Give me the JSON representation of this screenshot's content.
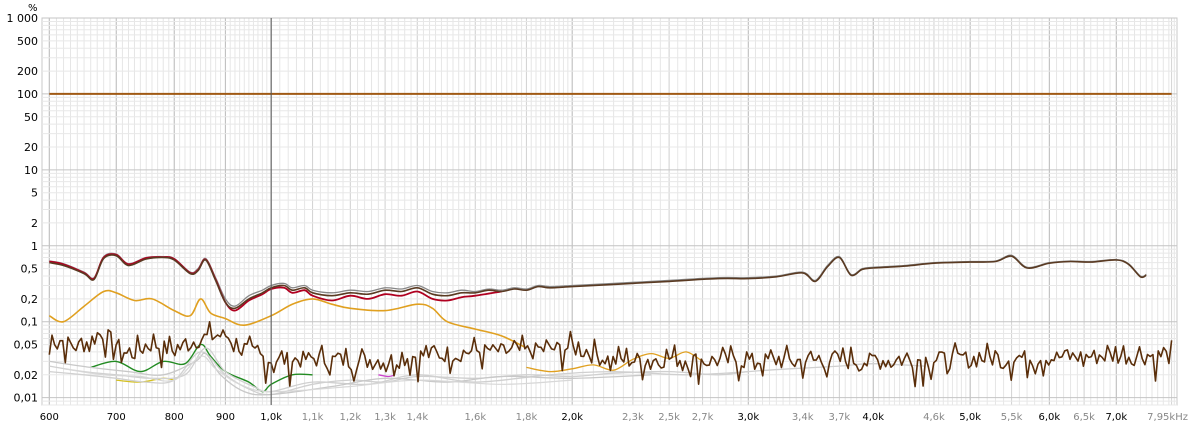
{
  "chart_data": {
    "type": "line",
    "y_unit": "%",
    "x_unit": "kHz",
    "y_scale": "log",
    "x_scale": "log",
    "xlim": [
      590,
      8050
    ],
    "ylim": [
      0.008,
      1000
    ],
    "grid": true,
    "y_ticks": [
      {
        "v": 1000,
        "label": "1 000"
      },
      {
        "v": 500,
        "label": "500"
      },
      {
        "v": 200,
        "label": "200"
      },
      {
        "v": 100,
        "label": "100"
      },
      {
        "v": 50,
        "label": "50"
      },
      {
        "v": 20,
        "label": "20"
      },
      {
        "v": 10,
        "label": "10"
      },
      {
        "v": 5,
        "label": "5"
      },
      {
        "v": 2,
        "label": "2"
      },
      {
        "v": 1,
        "label": "1"
      },
      {
        "v": 0.5,
        "label": "0,5"
      },
      {
        "v": 0.2,
        "label": "0,2"
      },
      {
        "v": 0.1,
        "label": "0,1"
      },
      {
        "v": 0.05,
        "label": "0,05"
      },
      {
        "v": 0.02,
        "label": "0,02"
      },
      {
        "v": 0.01,
        "label": "0,01"
      }
    ],
    "x_ticks": [
      {
        "v": 600,
        "label": "600",
        "major": true
      },
      {
        "v": 700,
        "label": "700",
        "major": true
      },
      {
        "v": 800,
        "label": "800",
        "major": true
      },
      {
        "v": 900,
        "label": "900",
        "major": true
      },
      {
        "v": 1000,
        "label": "1,0k",
        "major": true
      },
      {
        "v": 1100,
        "label": "1,1k",
        "major": false
      },
      {
        "v": 1200,
        "label": "1,2k",
        "major": false
      },
      {
        "v": 1300,
        "label": "1,3k",
        "major": false
      },
      {
        "v": 1400,
        "label": "1,4k",
        "major": false
      },
      {
        "v": 1600,
        "label": "1,6k",
        "major": false
      },
      {
        "v": 1800,
        "label": "1,8k",
        "major": false
      },
      {
        "v": 2000,
        "label": "2,0k",
        "major": true
      },
      {
        "v": 2300,
        "label": "2,3k",
        "major": false
      },
      {
        "v": 2500,
        "label": "2,5k",
        "major": false
      },
      {
        "v": 2700,
        "label": "2,7k",
        "major": false
      },
      {
        "v": 3000,
        "label": "3,0k",
        "major": true
      },
      {
        "v": 3400,
        "label": "3,4k",
        "major": false
      },
      {
        "v": 3700,
        "label": "3,7k",
        "major": false
      },
      {
        "v": 4000,
        "label": "4,0k",
        "major": true
      },
      {
        "v": 4600,
        "label": "4,6k",
        "major": false
      },
      {
        "v": 5000,
        "label": "5,0k",
        "major": true
      },
      {
        "v": 5500,
        "label": "5,5k",
        "major": false
      },
      {
        "v": 6000,
        "label": "6,0k",
        "major": true
      },
      {
        "v": 6500,
        "label": "6,5k",
        "major": false
      },
      {
        "v": 7000,
        "label": "7,0k",
        "major": true
      },
      {
        "v": 7950,
        "label": "7,95kHz",
        "major": false
      }
    ],
    "cursor_x": 1000,
    "series": [
      {
        "color": "#a05a14",
        "width": 2,
        "smooth": false,
        "x": [
          600,
          7950
        ],
        "y": [
          100,
          100
        ]
      },
      {
        "color": "#888888",
        "width": 1.3,
        "smooth": true,
        "x": [
          600,
          620,
          650,
          665,
          680,
          700,
          720,
          750,
          780,
          800,
          830,
          845,
          860,
          880,
          900,
          920,
          950,
          980,
          1000,
          1030,
          1050,
          1080,
          1100,
          1150,
          1200,
          1250,
          1300,
          1350,
          1400,
          1450,
          1500,
          1550,
          1600,
          1650,
          1700,
          1750,
          1800,
          1850,
          1900,
          2000,
          2200,
          2500,
          2800,
          3000,
          3200,
          3400,
          3500,
          3600,
          3700,
          3800,
          3900,
          4000,
          4300,
          4600,
          5000,
          5300,
          5500,
          5700,
          6000,
          6300,
          6600,
          7000,
          7200,
          7400,
          7500
        ],
        "y": [
          0.63,
          0.58,
          0.45,
          0.38,
          0.72,
          0.78,
          0.58,
          0.7,
          0.72,
          0.68,
          0.45,
          0.5,
          0.68,
          0.38,
          0.2,
          0.16,
          0.22,
          0.26,
          0.3,
          0.32,
          0.28,
          0.3,
          0.26,
          0.24,
          0.26,
          0.25,
          0.28,
          0.27,
          0.3,
          0.25,
          0.24,
          0.26,
          0.25,
          0.27,
          0.26,
          0.28,
          0.27,
          0.3,
          0.29,
          0.3,
          0.32,
          0.35,
          0.38,
          0.38,
          0.4,
          0.45,
          0.35,
          0.55,
          0.72,
          0.42,
          0.5,
          0.52,
          0.55,
          0.6,
          0.62,
          0.63,
          0.75,
          0.52,
          0.6,
          0.63,
          0.62,
          0.66,
          0.58,
          0.4,
          0.42
        ]
      },
      {
        "color": "#b00020",
        "width": 1.8,
        "smooth": true,
        "x": [
          600,
          620,
          650,
          665,
          680,
          700,
          720,
          750,
          780,
          800,
          830,
          845,
          860,
          880,
          900,
          920,
          950,
          980,
          1000,
          1030,
          1050,
          1080,
          1100,
          1150,
          1200,
          1250,
          1300,
          1350,
          1400,
          1450,
          1500,
          1550,
          1600,
          1700
        ],
        "y": [
          0.62,
          0.57,
          0.44,
          0.37,
          0.7,
          0.76,
          0.57,
          0.69,
          0.71,
          0.67,
          0.44,
          0.48,
          0.66,
          0.36,
          0.18,
          0.14,
          0.19,
          0.23,
          0.27,
          0.28,
          0.24,
          0.26,
          0.22,
          0.19,
          0.22,
          0.2,
          0.23,
          0.22,
          0.25,
          0.2,
          0.19,
          0.21,
          0.22,
          0.25
        ]
      },
      {
        "color": "#5a3a22",
        "width": 1.6,
        "smooth": true,
        "x": [
          600,
          620,
          650,
          665,
          680,
          700,
          720,
          750,
          780,
          800,
          830,
          845,
          860,
          880,
          900,
          920,
          950,
          980,
          1000,
          1030,
          1050,
          1080,
          1100,
          1150,
          1200,
          1250,
          1300,
          1350,
          1400,
          1450,
          1500,
          1550,
          1600,
          1650,
          1700,
          1750,
          1800,
          1850,
          1900,
          2000,
          2200,
          2500,
          2800,
          3000,
          3200,
          3400,
          3500,
          3600,
          3700,
          3800,
          3900,
          4000,
          4300,
          4600,
          5000,
          5300,
          5500,
          5700,
          6000,
          6300,
          6600,
          7000,
          7200,
          7400,
          7500
        ],
        "y": [
          0.6,
          0.55,
          0.43,
          0.36,
          0.68,
          0.74,
          0.55,
          0.67,
          0.7,
          0.65,
          0.43,
          0.47,
          0.65,
          0.35,
          0.18,
          0.15,
          0.2,
          0.24,
          0.28,
          0.3,
          0.26,
          0.28,
          0.24,
          0.22,
          0.24,
          0.23,
          0.26,
          0.25,
          0.28,
          0.23,
          0.22,
          0.24,
          0.24,
          0.26,
          0.25,
          0.27,
          0.26,
          0.29,
          0.28,
          0.29,
          0.31,
          0.34,
          0.37,
          0.37,
          0.39,
          0.44,
          0.34,
          0.53,
          0.7,
          0.41,
          0.49,
          0.51,
          0.54,
          0.59,
          0.61,
          0.62,
          0.73,
          0.51,
          0.59,
          0.62,
          0.61,
          0.65,
          0.57,
          0.39,
          0.41
        ]
      },
      {
        "color": "#e0a020",
        "width": 1.6,
        "smooth": true,
        "x": [
          600,
          620,
          650,
          680,
          700,
          730,
          760,
          800,
          830,
          850,
          870,
          900,
          940,
          1000,
          1050,
          1100,
          1150,
          1200,
          1300,
          1400,
          1450,
          1500,
          1600,
          1700,
          1800
        ],
        "y": [
          0.12,
          0.1,
          0.16,
          0.25,
          0.24,
          0.19,
          0.2,
          0.14,
          0.12,
          0.2,
          0.13,
          0.11,
          0.09,
          0.12,
          0.17,
          0.2,
          0.17,
          0.15,
          0.14,
          0.17,
          0.15,
          0.1,
          0.08,
          0.065,
          0.045
        ]
      },
      {
        "color": "#e0a020",
        "width": 1.3,
        "smooth": true,
        "x": [
          1800,
          1900,
          2000,
          2100,
          2200,
          2300,
          2400,
          2500,
          2600,
          2700
        ],
        "y": [
          0.025,
          0.022,
          0.024,
          0.027,
          0.023,
          0.032,
          0.038,
          0.033,
          0.04,
          0.03
        ]
      },
      {
        "color": "#228b22",
        "width": 1.4,
        "smooth": true,
        "x": [
          660,
          700,
          740,
          780,
          820,
          850,
          870,
          900,
          950,
          980,
          1000,
          1050,
          1100
        ],
        "y": [
          0.025,
          0.03,
          0.022,
          0.03,
          0.028,
          0.05,
          0.035,
          0.022,
          0.016,
          0.012,
          0.015,
          0.02,
          0.02
        ]
      },
      {
        "color": "#d4c020",
        "width": 1.3,
        "smooth": true,
        "x": [
          700,
          740,
          780,
          800
        ],
        "y": [
          0.017,
          0.016,
          0.018,
          0.017
        ]
      },
      {
        "color": "#cc44cc",
        "width": 1.3,
        "smooth": true,
        "x": [
          1280,
          1310,
          1330
        ],
        "y": [
          0.02,
          0.019,
          0.02
        ]
      },
      {
        "color": "#d0d0d0",
        "width": 1.3,
        "smooth": true,
        "x": [
          600,
          650,
          700,
          750,
          800,
          850,
          900,
          950,
          1000,
          1100,
          1200,
          1300,
          1400,
          1600,
          1800,
          2000,
          2200,
          2500,
          2800,
          3000,
          3300,
          3700,
          4000,
          4500
        ],
        "y": [
          0.022,
          0.02,
          0.018,
          0.016,
          0.017,
          0.04,
          0.02,
          0.013,
          0.011,
          0.015,
          0.017,
          0.016,
          0.019,
          0.018,
          0.02,
          0.019,
          0.021,
          0.022,
          0.02,
          0.022,
          0.024,
          0.026,
          0.028,
          0.026
        ]
      },
      {
        "color": "#d0d0d0",
        "width": 1.3,
        "smooth": true,
        "x": [
          600,
          650,
          700,
          760,
          820,
          860,
          900,
          960,
          1000,
          1100,
          1250,
          1400,
          1600,
          1900,
          2200,
          2600,
          3000
        ],
        "y": [
          0.026,
          0.022,
          0.02,
          0.018,
          0.02,
          0.045,
          0.022,
          0.014,
          0.012,
          0.016,
          0.015,
          0.02,
          0.016,
          0.02,
          0.022,
          0.02,
          0.022
        ]
      },
      {
        "color": "#c8c8c8",
        "width": 1.3,
        "smooth": true,
        "x": [
          600,
          660,
          720,
          780,
          840,
          860,
          890,
          940,
          1000,
          1150,
          1300,
          1500,
          1700,
          2000,
          2400
        ],
        "y": [
          0.03,
          0.025,
          0.022,
          0.02,
          0.03,
          0.038,
          0.02,
          0.012,
          0.011,
          0.014,
          0.018,
          0.016,
          0.019,
          0.018,
          0.02
        ]
      },
      {
        "color": "#d8d8d8",
        "width": 1.2,
        "smooth": true,
        "x": [
          620,
          680,
          740,
          800,
          850,
          880,
          930,
          1000,
          1200,
          1400,
          1700,
          2000
        ],
        "y": [
          0.024,
          0.02,
          0.019,
          0.017,
          0.035,
          0.024,
          0.015,
          0.012,
          0.014,
          0.017,
          0.015,
          0.017
        ]
      },
      {
        "color": "#5a2e0a",
        "width": 1.6,
        "smooth": false,
        "seed": 7,
        "noise": 0.38,
        "x": [
          600,
          640,
          680,
          720,
          760,
          800,
          850,
          900,
          950,
          1000,
          1100,
          1200,
          1300,
          1400,
          1600,
          1800,
          2000,
          2200,
          2500,
          2800,
          3000,
          3500,
          4000,
          5000,
          6000,
          7000,
          7950
        ],
        "y": [
          0.065,
          0.045,
          0.07,
          0.035,
          0.05,
          0.04,
          0.06,
          0.065,
          0.04,
          0.03,
          0.032,
          0.03,
          0.03,
          0.035,
          0.04,
          0.04,
          0.045,
          0.03,
          0.032,
          0.03,
          0.03,
          0.03,
          0.03,
          0.032,
          0.033,
          0.035,
          0.035
        ]
      }
    ]
  }
}
